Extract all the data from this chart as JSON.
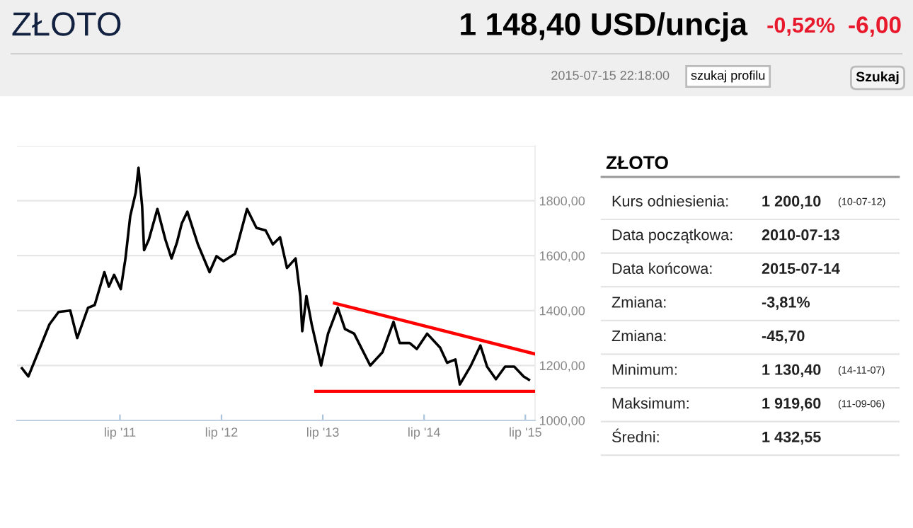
{
  "chart_data": [
    {
      "type": "line",
      "title": "ZŁOTO",
      "annotations": [
        "1 148,40 USD/uncja",
        "-0,52%",
        "-6,00",
        "2015-07-15 22:18:00",
        "szukaj profilu",
        "Szukaj"
      ],
      "series": [
        {
          "color": "#000000",
          "x": [
            "2010-07-13",
            "2010-08-05",
            "2010-10-20",
            "2010-11-22",
            "2011-01-03",
            "2011-01-28",
            "2011-03-08",
            "2011-04-01",
            "2011-05-06",
            "2011-05-22",
            "2011-06-10",
            "2011-07-04",
            "2011-07-21",
            "2011-08-07",
            "2011-08-27",
            "2011-09-06",
            "2011-09-19",
            "2011-09-26",
            "2011-10-13",
            "2011-11-13",
            "2011-12-12",
            "2012-01-03",
            "2012-01-23",
            "2012-02-09",
            "2012-02-29",
            "2012-04-07",
            "2012-05-19",
            "2012-06-13",
            "2012-07-08",
            "2012-08-19",
            "2012-10-01",
            "2012-11-04",
            "2012-12-07",
            "2013-01-02",
            "2013-01-28",
            "2013-02-22",
            "2013-03-25",
            "2013-04-11",
            "2013-04-18",
            "2013-05-03",
            "2013-05-22",
            "2013-06-25",
            "2013-07-20",
            "2013-08-24",
            "2013-09-19",
            "2013-10-22",
            "2013-12-19",
            "2014-02-01",
            "2014-03-13",
            "2014-04-04",
            "2014-05-10",
            "2014-06-05",
            "2014-07-12",
            "2014-08-28",
            "2014-09-22",
            "2014-10-22",
            "2014-11-07",
            "2014-12-15",
            "2015-01-20",
            "2015-02-13",
            "2015-03-17",
            "2015-04-19",
            "2015-05-22",
            "2015-06-25",
            "2015-07-14"
          ],
          "values": [
            1190,
            1160,
            1350,
            1395,
            1400,
            1300,
            1410,
            1420,
            1540,
            1487,
            1530,
            1478,
            1590,
            1743,
            1830,
            1920,
            1780,
            1620,
            1658,
            1770,
            1658,
            1590,
            1650,
            1718,
            1760,
            1641,
            1540,
            1598,
            1580,
            1607,
            1770,
            1701,
            1692,
            1641,
            1667,
            1555,
            1590,
            1453,
            1325,
            1453,
            1350,
            1200,
            1316,
            1410,
            1333,
            1316,
            1200,
            1248,
            1359,
            1282,
            1282,
            1260,
            1316,
            1265,
            1210,
            1222,
            1131,
            1196,
            1273,
            1196,
            1150,
            1196,
            1196,
            1160,
            1148
          ]
        },
        {
          "color": "#ff0000",
          "x": [
            "2013-08-12",
            "2015-08-01"
          ],
          "values": [
            1427,
            1243
          ]
        },
        {
          "color": "#ff0000",
          "x": [
            "2013-06-06",
            "2015-08-01"
          ],
          "values": [
            1106,
            1106
          ]
        }
      ],
      "xlim": [
        "2010-06-25",
        "2015-08-05"
      ],
      "xticks": [
        {
          "value": "2011-07-01",
          "label": "lip '11"
        },
        {
          "value": "2012-07-01",
          "label": "lip '12"
        },
        {
          "value": "2013-07-01",
          "label": "lip '13"
        },
        {
          "value": "2014-07-01",
          "label": "lip '14"
        },
        {
          "value": "2015-07-01",
          "label": "lip '15"
        }
      ],
      "ylim": [
        1000,
        2000
      ],
      "yticks": [
        {
          "value": 1000,
          "label": "1000,00"
        },
        {
          "value": 1200,
          "label": "1200,00"
        },
        {
          "value": 1400,
          "label": "1400,00"
        },
        {
          "value": 1600,
          "label": "1600,00"
        },
        {
          "value": 1800,
          "label": "1800,00"
        },
        {
          "value": 2000,
          "label": null
        }
      ],
      "grid": "y",
      "legend": false
    },
    {
      "type": "other",
      "title": "ZŁOTO",
      "cell_labels": [
        [
          "Kurs odniesienia:",
          "1 200,10",
          "(10-07-12)"
        ],
        [
          "Data początkowa:",
          "2010-07-13"
        ],
        [
          "Data końcowa:",
          "2015-07-14"
        ],
        [
          "Zmiana:",
          "-3,81%"
        ],
        [
          "Zmiana:",
          "-45,70"
        ],
        [
          "Minimum:",
          "1 130,40",
          "(14-11-07)"
        ],
        [
          "Maksimum:",
          "1 919,60",
          "(11-09-06)"
        ],
        [
          "Średni:",
          "1 432,55"
        ]
      ]
    }
  ]
}
